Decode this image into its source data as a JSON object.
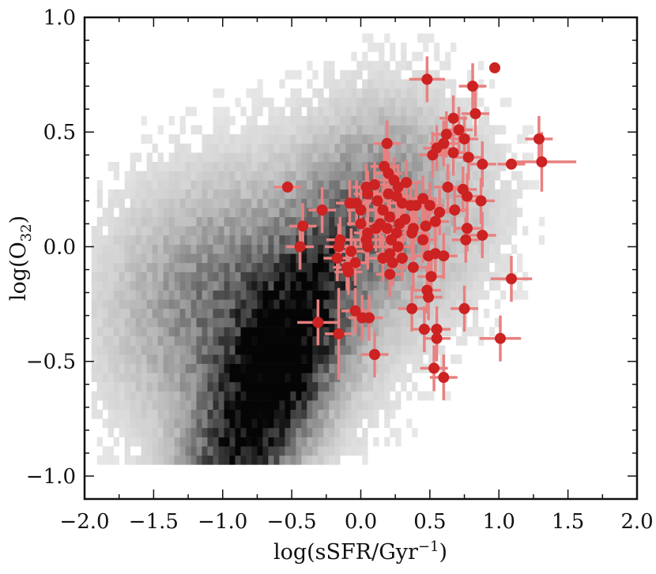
{
  "chart_data": {
    "type": "scatter",
    "title": "",
    "xlabel_main": "log(sSFR/Gyr",
    "xlabel_sup": "−1",
    "xlabel_close": ")",
    "ylabel_main": "log(O",
    "ylabel_sub": "32",
    "ylabel_close": ")",
    "xlim": [
      -2.0,
      2.0
    ],
    "ylim": [
      -1.1,
      1.0
    ],
    "x_ticks": [
      -2.0,
      -1.5,
      -1.0,
      -0.5,
      0.0,
      0.5,
      1.0,
      1.5,
      2.0
    ],
    "x_tick_labels": [
      "−2.0",
      "−1.5",
      "−1.0",
      "−0.5",
      "0.0",
      "0.5",
      "1.0",
      "1.5",
      "2.0"
    ],
    "y_ticks": [
      -1.0,
      -0.5,
      0.0,
      0.5,
      1.0
    ],
    "y_tick_labels": [
      "−1.0",
      "−0.5",
      "0.0",
      "0.5",
      "1.0"
    ],
    "grid": false,
    "background_density": {
      "type": "heatmap",
      "colormap": "greys",
      "peak_x": -0.72,
      "peak_y": -0.68,
      "x_extent": [
        -1.95,
        1.7
      ],
      "y_extent": [
        -0.95,
        0.95
      ]
    },
    "colors": {
      "points": "#cc2222",
      "errorbars": "#e88080"
    },
    "series": [
      {
        "points": [
          {
            "x": 0.97,
            "y": 0.78,
            "xerr": 0.0,
            "yerr": 0.0
          },
          {
            "x": 0.48,
            "y": 0.73,
            "xerr": 0.13,
            "yerr": 0.1
          },
          {
            "x": 0.81,
            "y": 0.7,
            "xerr": 0.1,
            "yerr": 0.1
          },
          {
            "x": 0.83,
            "y": 0.58,
            "xerr": 0.1,
            "yerr": 0.1
          },
          {
            "x": 0.67,
            "y": 0.56,
            "xerr": 0.1,
            "yerr": 0.1
          },
          {
            "x": 0.71,
            "y": 0.51,
            "xerr": 0.1,
            "yerr": 0.1
          },
          {
            "x": 0.62,
            "y": 0.49,
            "xerr": 0.1,
            "yerr": 0.1
          },
          {
            "x": 0.6,
            "y": 0.45,
            "xerr": 0.1,
            "yerr": 0.1
          },
          {
            "x": 0.55,
            "y": 0.43,
            "xerr": 0.1,
            "yerr": 0.1
          },
          {
            "x": 0.52,
            "y": 0.4,
            "xerr": 0.1,
            "yerr": 0.1
          },
          {
            "x": 0.67,
            "y": 0.41,
            "xerr": 0.1,
            "yerr": 0.1
          },
          {
            "x": 0.75,
            "y": 0.47,
            "xerr": 0.1,
            "yerr": 0.1
          },
          {
            "x": 0.19,
            "y": 0.45,
            "xerr": 0.1,
            "yerr": 0.1
          },
          {
            "x": 0.78,
            "y": 0.39,
            "xerr": 0.1,
            "yerr": 0.1
          },
          {
            "x": 0.88,
            "y": 0.36,
            "xerr": 0.1,
            "yerr": 0.1
          },
          {
            "x": 1.09,
            "y": 0.36,
            "xerr": 0.1,
            "yerr": 0.0
          },
          {
            "x": 1.29,
            "y": 0.47,
            "xerr": 0.1,
            "yerr": 0.1
          },
          {
            "x": 1.31,
            "y": 0.37,
            "xerr": 0.25,
            "yerr": 0.13
          },
          {
            "x": 0.17,
            "y": 0.35,
            "xerr": 0.1,
            "yerr": 0.1
          },
          {
            "x": 0.2,
            "y": 0.32,
            "xerr": 0.1,
            "yerr": 0.1
          },
          {
            "x": 0.24,
            "y": 0.29,
            "xerr": 0.1,
            "yerr": 0.1
          },
          {
            "x": 0.33,
            "y": 0.28,
            "xerr": 0.1,
            "yerr": 0.1
          },
          {
            "x": 0.1,
            "y": 0.27,
            "xerr": 0.1,
            "yerr": 0.1
          },
          {
            "x": 0.04,
            "y": 0.26,
            "xerr": 0.1,
            "yerr": 0.1
          },
          {
            "x": 0.27,
            "y": 0.26,
            "xerr": 0.1,
            "yerr": 0.1
          },
          {
            "x": 0.63,
            "y": 0.26,
            "xerr": 0.1,
            "yerr": 0.1
          },
          {
            "x": 0.74,
            "y": 0.25,
            "xerr": 0.1,
            "yerr": 0.1
          },
          {
            "x": 0.77,
            "y": 0.22,
            "xerr": 0.1,
            "yerr": 0.1
          },
          {
            "x": -0.53,
            "y": 0.26,
            "xerr": 0.1,
            "yerr": 0.0
          },
          {
            "x": 0.05,
            "y": 0.23,
            "xerr": 0.1,
            "yerr": 0.1
          },
          {
            "x": 0.2,
            "y": 0.23,
            "xerr": 0.1,
            "yerr": 0.1
          },
          {
            "x": 0.26,
            "y": 0.22,
            "xerr": 0.1,
            "yerr": 0.1
          },
          {
            "x": 0.45,
            "y": 0.21,
            "xerr": 0.1,
            "yerr": 0.1
          },
          {
            "x": 0.87,
            "y": 0.2,
            "xerr": 0.1,
            "yerr": 0.1
          },
          {
            "x": -0.08,
            "y": 0.19,
            "xerr": 0.1,
            "yerr": 0.1
          },
          {
            "x": -0.03,
            "y": 0.19,
            "xerr": 0.1,
            "yerr": 0.1
          },
          {
            "x": 0.12,
            "y": 0.2,
            "xerr": 0.1,
            "yerr": 0.1
          },
          {
            "x": 0.3,
            "y": 0.19,
            "xerr": 0.1,
            "yerr": 0.1
          },
          {
            "x": 0.36,
            "y": 0.18,
            "xerr": 0.1,
            "yerr": 0.1
          },
          {
            "x": 0.4,
            "y": 0.18,
            "xerr": 0.1,
            "yerr": 0.1
          },
          {
            "x": 0.5,
            "y": 0.18,
            "xerr": 0.1,
            "yerr": 0.1
          },
          {
            "x": -0.28,
            "y": 0.16,
            "xerr": 0.1,
            "yerr": 0.1
          },
          {
            "x": 0.0,
            "y": 0.16,
            "xerr": 0.1,
            "yerr": 0.1
          },
          {
            "x": 0.16,
            "y": 0.16,
            "xerr": 0.1,
            "yerr": 0.1
          },
          {
            "x": 0.57,
            "y": 0.15,
            "xerr": 0.1,
            "yerr": 0.1
          },
          {
            "x": 0.68,
            "y": 0.16,
            "xerr": 0.1,
            "yerr": 0.1
          },
          {
            "x": 0.21,
            "y": 0.13,
            "xerr": 0.1,
            "yerr": 0.1
          },
          {
            "x": 0.32,
            "y": 0.12,
            "xerr": 0.1,
            "yerr": 0.1
          },
          {
            "x": 0.54,
            "y": 0.11,
            "xerr": 0.1,
            "yerr": 0.1
          },
          {
            "x": 0.0,
            "y": 0.1,
            "xerr": 0.1,
            "yerr": 0.1
          },
          {
            "x": 0.14,
            "y": 0.1,
            "xerr": 0.1,
            "yerr": 0.1
          },
          {
            "x": 0.28,
            "y": 0.1,
            "xerr": 0.1,
            "yerr": 0.1
          },
          {
            "x": 0.47,
            "y": 0.09,
            "xerr": 0.1,
            "yerr": 0.1
          },
          {
            "x": -0.42,
            "y": 0.09,
            "xerr": 0.1,
            "yerr": 0.1
          },
          {
            "x": 0.11,
            "y": 0.08,
            "xerr": 0.1,
            "yerr": 0.1
          },
          {
            "x": 0.19,
            "y": 0.08,
            "xerr": 0.1,
            "yerr": 0.1
          },
          {
            "x": 0.38,
            "y": 0.08,
            "xerr": 0.1,
            "yerr": 0.1
          },
          {
            "x": 0.77,
            "y": 0.08,
            "xerr": 0.1,
            "yerr": 0.1
          },
          {
            "x": 0.05,
            "y": 0.06,
            "xerr": 0.1,
            "yerr": 0.1
          },
          {
            "x": 0.26,
            "y": 0.06,
            "xerr": 0.1,
            "yerr": 0.1
          },
          {
            "x": 0.37,
            "y": 0.06,
            "xerr": 0.1,
            "yerr": 0.1
          },
          {
            "x": 0.88,
            "y": 0.05,
            "xerr": 0.1,
            "yerr": 0.1
          },
          {
            "x": -0.15,
            "y": 0.03,
            "xerr": 0.1,
            "yerr": 0.1
          },
          {
            "x": 0.04,
            "y": 0.03,
            "xerr": 0.1,
            "yerr": 0.1
          },
          {
            "x": 0.22,
            "y": 0.03,
            "xerr": 0.1,
            "yerr": 0.1
          },
          {
            "x": 0.45,
            "y": 0.03,
            "xerr": 0.1,
            "yerr": 0.1
          },
          {
            "x": 0.76,
            "y": 0.03,
            "xerr": 0.1,
            "yerr": 0.1
          },
          {
            "x": -0.44,
            "y": 0.0,
            "xerr": 0.1,
            "yerr": 0.1
          },
          {
            "x": -0.16,
            "y": 0.0,
            "xerr": 0.1,
            "yerr": 0.1
          },
          {
            "x": 0.05,
            "y": 0.0,
            "xerr": 0.1,
            "yerr": 0.1
          },
          {
            "x": 0.27,
            "y": 0.0,
            "xerr": 0.1,
            "yerr": 0.1
          },
          {
            "x": -0.07,
            "y": -0.02,
            "xerr": 0.1,
            "yerr": 0.1
          },
          {
            "x": 0.21,
            "y": -0.03,
            "xerr": 0.1,
            "yerr": 0.1
          },
          {
            "x": 0.54,
            "y": -0.03,
            "xerr": 0.1,
            "yerr": 0.1
          },
          {
            "x": -0.17,
            "y": -0.05,
            "xerr": 0.1,
            "yerr": 0.1
          },
          {
            "x": 0.16,
            "y": -0.05,
            "xerr": 0.1,
            "yerr": 0.1
          },
          {
            "x": 0.3,
            "y": -0.05,
            "xerr": 0.1,
            "yerr": 0.1
          },
          {
            "x": 0.49,
            "y": -0.04,
            "xerr": 0.1,
            "yerr": 0.1
          },
          {
            "x": 0.6,
            "y": -0.04,
            "xerr": 0.1,
            "yerr": 0.1
          },
          {
            "x": -0.04,
            "y": -0.07,
            "xerr": 0.1,
            "yerr": 0.1
          },
          {
            "x": 0.23,
            "y": -0.07,
            "xerr": 0.1,
            "yerr": 0.1
          },
          {
            "x": 0.38,
            "y": -0.09,
            "xerr": 0.1,
            "yerr": 0.1
          },
          {
            "x": -0.1,
            "y": -0.09,
            "xerr": 0.1,
            "yerr": 0.1
          },
          {
            "x": 0.21,
            "y": -0.12,
            "xerr": 0.1,
            "yerr": 0.1
          },
          {
            "x": -0.09,
            "y": -0.11,
            "xerr": 0.1,
            "yerr": 0.1
          },
          {
            "x": 0.51,
            "y": -0.13,
            "xerr": 0.1,
            "yerr": 0.1
          },
          {
            "x": 1.09,
            "y": -0.14,
            "xerr": 0.15,
            "yerr": 0.1
          },
          {
            "x": 0.48,
            "y": -0.19,
            "xerr": 0.1,
            "yerr": 0.1
          },
          {
            "x": 0.49,
            "y": -0.22,
            "xerr": 0.1,
            "yerr": 0.1
          },
          {
            "x": 0.37,
            "y": -0.27,
            "xerr": 0.1,
            "yerr": 0.1
          },
          {
            "x": 0.75,
            "y": -0.27,
            "xerr": 0.1,
            "yerr": 0.1
          },
          {
            "x": -0.04,
            "y": -0.28,
            "xerr": 0.1,
            "yerr": 0.1
          },
          {
            "x": 0.06,
            "y": -0.31,
            "xerr": 0.1,
            "yerr": 0.1
          },
          {
            "x": 0.01,
            "y": -0.31,
            "xerr": 0.1,
            "yerr": 0.1
          },
          {
            "x": -0.31,
            "y": -0.33,
            "xerr": 0.15,
            "yerr": 0.1
          },
          {
            "x": 0.46,
            "y": -0.36,
            "xerr": 0.1,
            "yerr": 0.1
          },
          {
            "x": 0.55,
            "y": -0.36,
            "xerr": 0.1,
            "yerr": 0.1
          },
          {
            "x": -0.16,
            "y": -0.38,
            "xerr": 0.1,
            "yerr": 0.2
          },
          {
            "x": 0.55,
            "y": -0.4,
            "xerr": 0.1,
            "yerr": 0.1
          },
          {
            "x": 1.01,
            "y": -0.4,
            "xerr": 0.15,
            "yerr": 0.1
          },
          {
            "x": 0.1,
            "y": -0.47,
            "xerr": 0.1,
            "yerr": 0.1
          },
          {
            "x": 0.53,
            "y": -0.53,
            "xerr": 0.1,
            "yerr": 0.1
          },
          {
            "x": 0.6,
            "y": -0.57,
            "xerr": 0.1,
            "yerr": 0.1
          }
        ]
      }
    ]
  }
}
